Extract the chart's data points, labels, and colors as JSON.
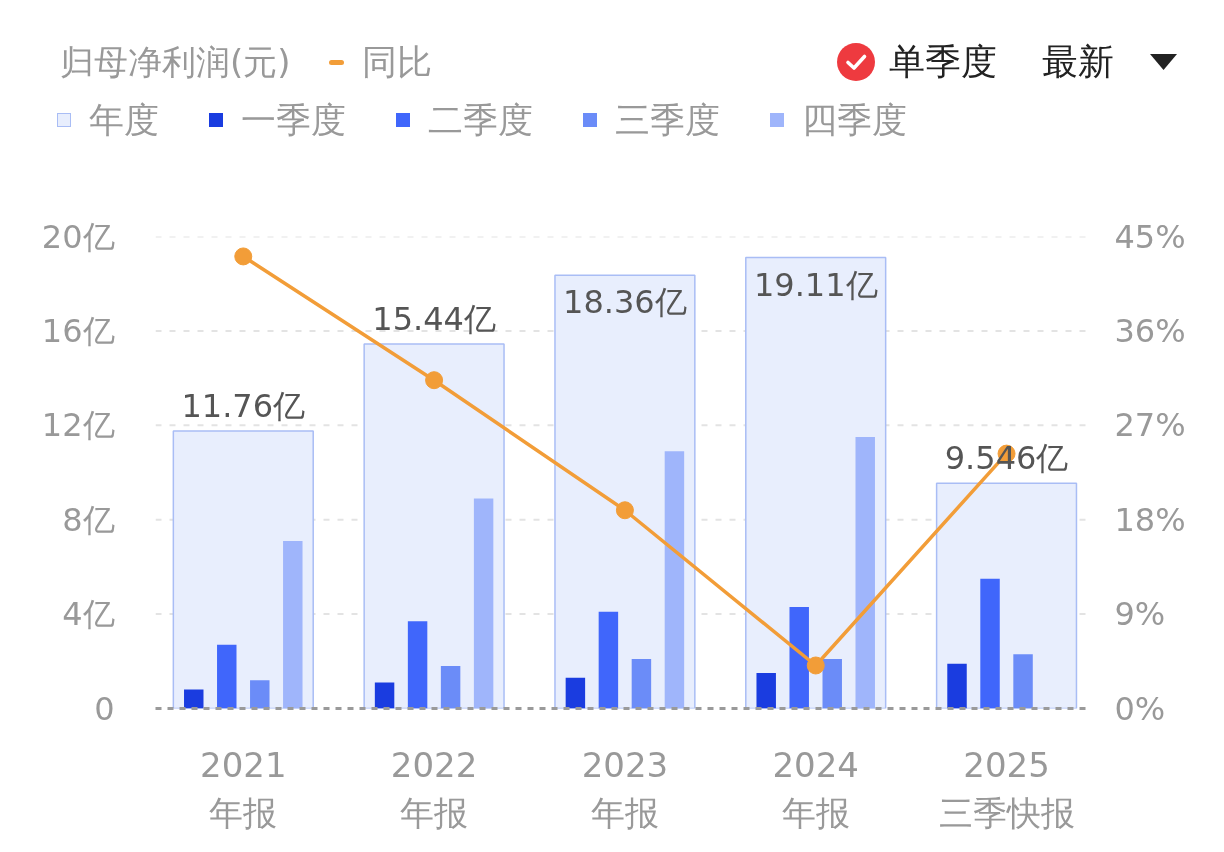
{
  "chart_data": {
    "type": "bar",
    "title": "归母净利润(元)",
    "categories": [
      "2021\n年报",
      "2022\n年报",
      "2023\n年报",
      "2024\n年报",
      "2025\n三季快报"
    ],
    "series": [
      {
        "name": "年度",
        "color": "#e8eefd",
        "values": [
          11.76,
          15.44,
          18.36,
          19.11,
          9.546
        ],
        "value_labels": [
          "11.76亿",
          "15.44亿",
          "18.36亿",
          "19.11亿",
          "9.546亿"
        ]
      },
      {
        "name": "一季度",
        "color": "#1a3ce0",
        "values": [
          0.8,
          1.1,
          1.3,
          1.5,
          1.9
        ]
      },
      {
        "name": "二季度",
        "color": "#4066fb",
        "values": [
          2.7,
          3.7,
          4.1,
          4.3,
          5.5
        ]
      },
      {
        "name": "三季度",
        "color": "#6b8cf8",
        "values": [
          1.2,
          1.8,
          2.1,
          2.1,
          2.3
        ]
      },
      {
        "name": "四季度",
        "color": "#9fb5fb",
        "values": [
          7.1,
          8.9,
          10.9,
          11.5,
          null
        ]
      },
      {
        "name": "同比",
        "type": "line",
        "axis": "y2",
        "color": "#f29d38",
        "marker": "circle",
        "values": [
          43.1,
          31.3,
          18.9,
          4.1,
          24.3
        ]
      }
    ],
    "ylim": [
      0,
      20
    ],
    "yticks": [
      0,
      {
        "value": 4,
        "label": "4亿"
      },
      {
        "value": 8,
        "label": "8亿"
      },
      {
        "value": 12,
        "label": "12亿"
      },
      {
        "value": 16,
        "label": "16亿"
      },
      {
        "value": 20,
        "label": "20亿"
      }
    ],
    "y2lim": [
      0,
      45
    ],
    "y2ticks": [
      {
        "value": 0,
        "label": "0%"
      },
      {
        "value": 9,
        "label": "9%"
      },
      {
        "value": 18,
        "label": "18%"
      },
      {
        "value": 27,
        "label": "27%"
      },
      {
        "value": 36,
        "label": "36%"
      },
      {
        "value": 45,
        "label": "45%"
      }
    ],
    "grid": "y",
    "legend": "top left",
    "annotations": [
      "单季度",
      "最新"
    ]
  }
}
